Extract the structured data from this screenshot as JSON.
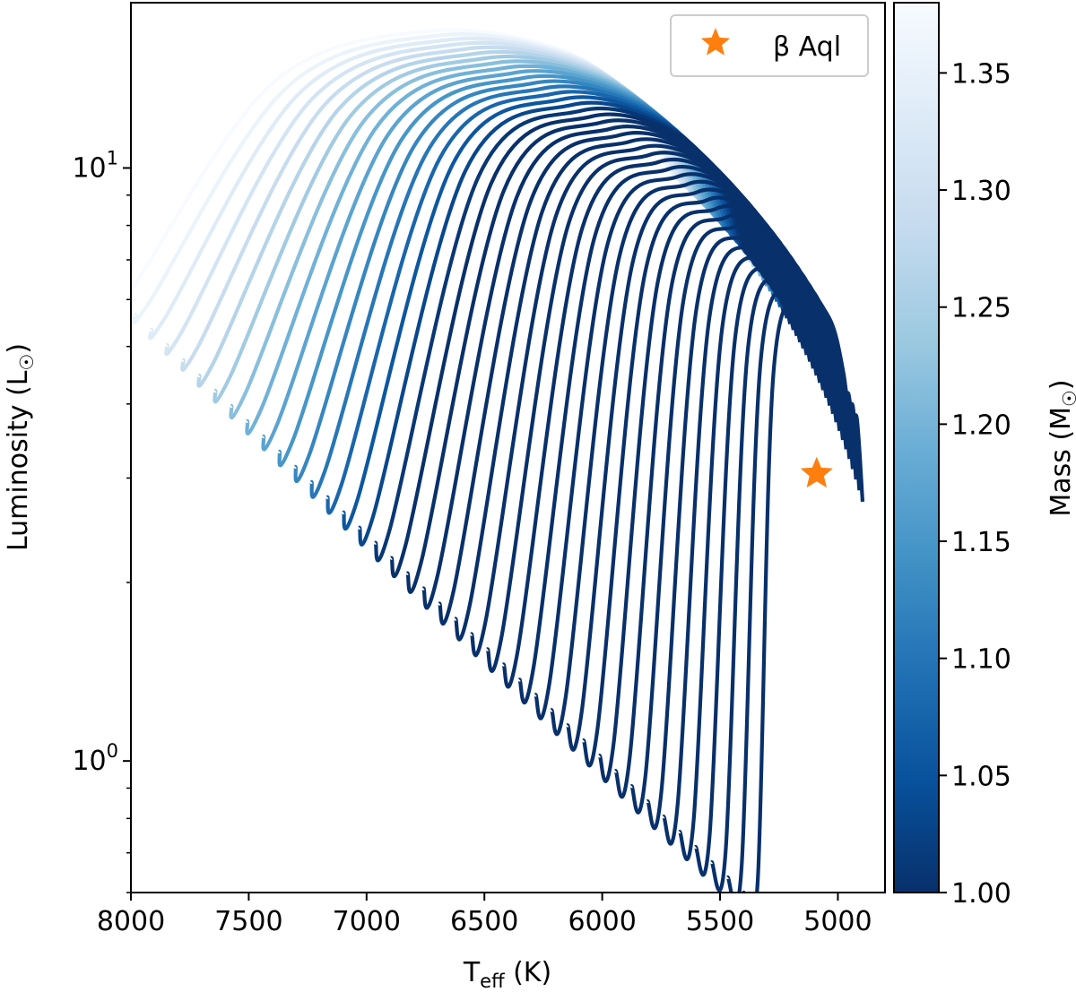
{
  "chart_data": {
    "type": "line",
    "xlabel": "T",
    "xlabel_sub": "eff",
    "xlabel_unit": " (K)",
    "ylabel": "Luminosity (L",
    "ylabel_sub": "☉",
    "ylabel_close": ")",
    "x_reversed": true,
    "xlim": [
      8000,
      4800
    ],
    "ylim": [
      0.6,
      19
    ],
    "y_scale": "log",
    "x_ticks": [
      8000,
      7500,
      7000,
      6500,
      6000,
      5500,
      5000
    ],
    "x_tick_labels": [
      "8000",
      "7500",
      "7000",
      "6500",
      "6000",
      "5500",
      "5000"
    ],
    "y_major_ticks": [
      1,
      10
    ],
    "y_tick_labels": [
      {
        "base": "10",
        "exp": "0"
      },
      {
        "base": "10",
        "exp": "1"
      }
    ],
    "grid": false,
    "legend": {
      "location": "top-right",
      "entries": [
        {
          "label": "β Aql",
          "marker": "star",
          "color": "#ff7f0e"
        }
      ]
    },
    "point": {
      "name": "β Aql",
      "teff": 5090,
      "luminosity": 3.05,
      "color": "#ff7f0e"
    },
    "colorbar": {
      "label": "Mass (M",
      "label_sub": "☉",
      "label_close": ")",
      "cmap": "Blues_r",
      "range": [
        1.0,
        1.38
      ],
      "ticks": [
        1.0,
        1.05,
        1.1,
        1.15,
        1.2,
        1.25,
        1.3,
        1.35
      ],
      "tick_labels": [
        "1.00",
        "1.05",
        "1.10",
        "1.15",
        "1.20",
        "1.25",
        "1.30",
        "1.35"
      ],
      "colors": [
        "#08306b",
        "#08519c",
        "#2171b5",
        "#4292c6",
        "#6baed6",
        "#9ecae1",
        "#c6dbef",
        "#deebf7",
        "#f7fbff"
      ]
    },
    "tracks": {
      "mass_range": [
        1.0,
        1.38
      ],
      "count": 40,
      "zams_teff": [
        5400,
        8050
      ],
      "zams_luminosity": [
        0.6,
        6.0
      ],
      "saturate_mass": 1.22,
      "end_teff": [
        4895,
        5440
      ],
      "peak_luminosity": [
        6.0,
        17.0
      ],
      "hook_luminosity": [
        3.8,
        10.5
      ]
    }
  }
}
